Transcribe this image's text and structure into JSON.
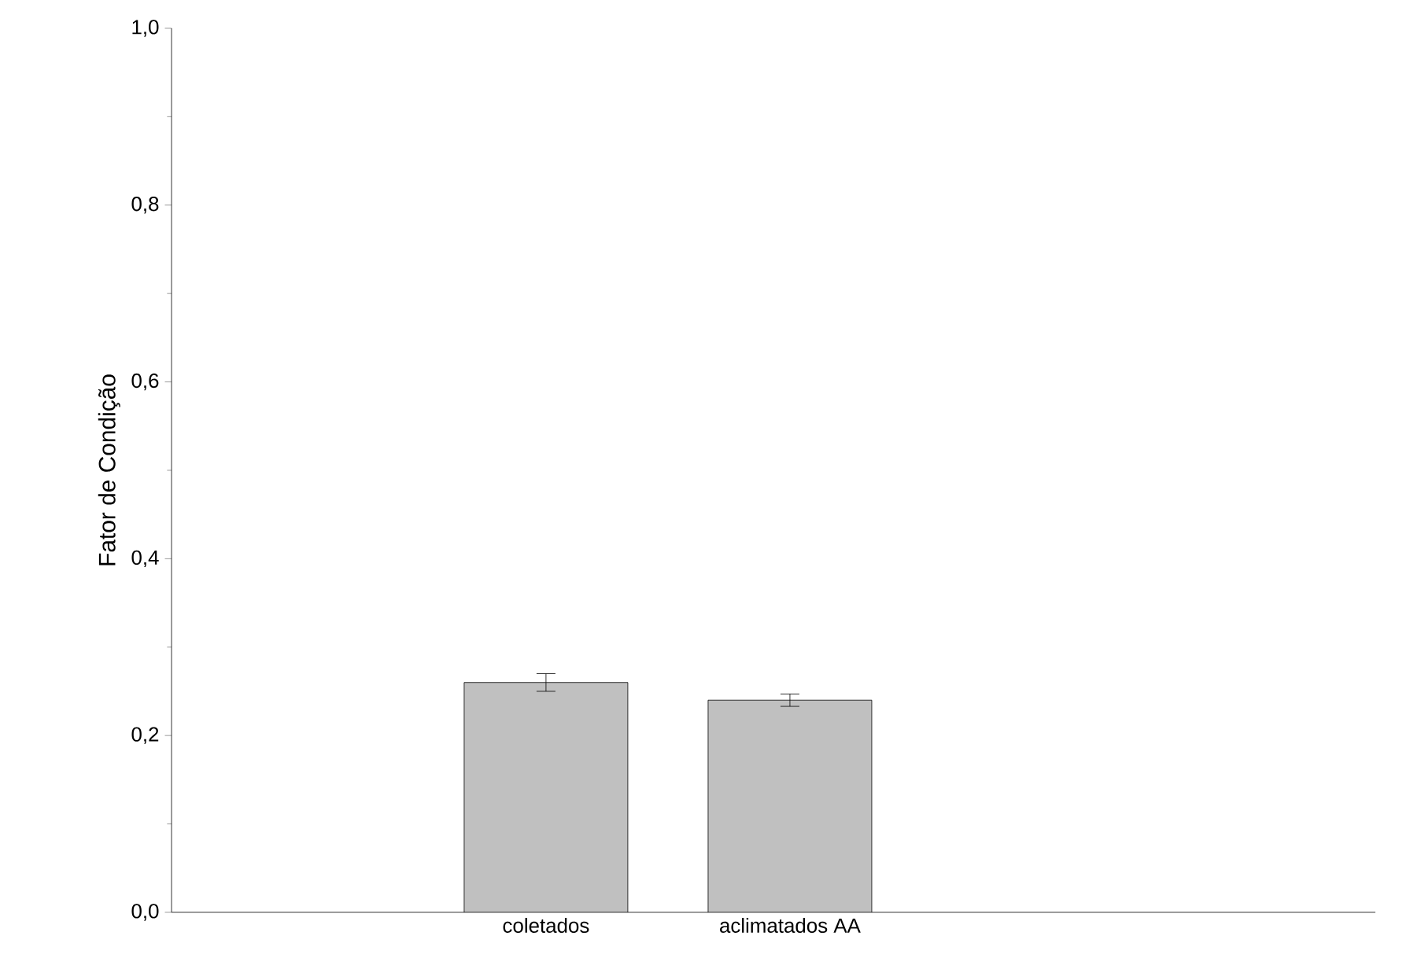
{
  "chart_data": {
    "type": "bar",
    "ylabel": "Fator de Condição",
    "categories": [
      "coletados",
      "aclimatados AA"
    ],
    "values": [
      0.26,
      0.24
    ],
    "errors": [
      0.01,
      0.007
    ],
    "color": "#c0c0c0",
    "ylim": [
      0,
      1
    ],
    "yticks": [
      {
        "value": 0,
        "label": "0,0"
      },
      {
        "value": 0.2,
        "label": "0,2"
      },
      {
        "value": 0.4,
        "label": "0,4"
      },
      {
        "value": 0.6,
        "label": "0,6"
      },
      {
        "value": 0.8,
        "label": "0,8"
      },
      {
        "value": 1,
        "label": "1,0"
      }
    ],
    "grid": false
  }
}
